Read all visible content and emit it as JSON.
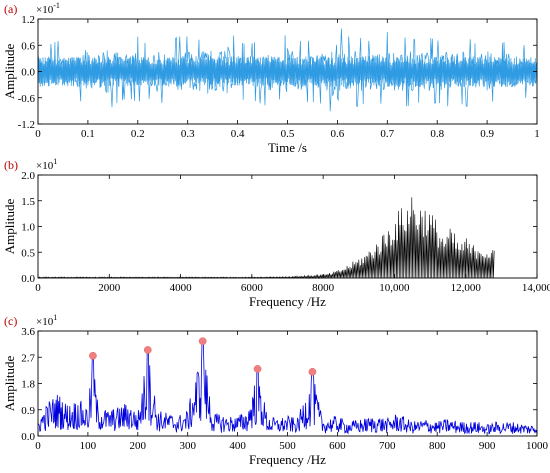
{
  "chart_data": [
    {
      "id": "a",
      "panel_label": "(a)",
      "type": "line",
      "xlabel": "Time /s",
      "ylabel": "Amplitude",
      "xlim": [
        0,
        1
      ],
      "ylim": [
        -1.2,
        1.2
      ],
      "exponent": {
        "base": "×10",
        "power": "-1"
      },
      "xticks": [
        "0",
        "0.1",
        "0.2",
        "0.3",
        "0.4",
        "0.5",
        "0.6",
        "0.7",
        "0.8",
        "0.9",
        "1"
      ],
      "yticks": [
        "-1.2",
        "-0.6",
        "0.0",
        "0.6",
        "1.2"
      ],
      "color": "#2f9be3",
      "series": [
        {
          "x": [
            0,
            0.02,
            0.04,
            0.06,
            0.08,
            0.1,
            0.12,
            0.14,
            0.16,
            0.18,
            0.2,
            0.22,
            0.24,
            0.26,
            0.28,
            0.3,
            0.32,
            0.34,
            0.36,
            0.38,
            0.4,
            0.42,
            0.44,
            0.46,
            0.48,
            0.5,
            0.52,
            0.54,
            0.56,
            0.58,
            0.6,
            0.62,
            0.64,
            0.66,
            0.68,
            0.7,
            0.72,
            0.74,
            0.76,
            0.78,
            0.8,
            0.82,
            0.84,
            0.86,
            0.88,
            0.9,
            0.92,
            0.94,
            0.96,
            0.98,
            1.0
          ],
          "min": [
            -0.5,
            -0.6,
            -0.7,
            -0.5,
            -0.6,
            -0.9,
            -0.6,
            -0.9,
            -0.7,
            -0.6,
            -0.7,
            -0.6,
            -0.8,
            -0.6,
            -0.7,
            -0.8,
            -0.7,
            -0.9,
            -0.7,
            -1.0,
            -0.7,
            -0.6,
            -0.7,
            -0.8,
            -0.6,
            -0.8,
            -0.7,
            -0.7,
            -0.7,
            -0.8,
            -1.2,
            -0.7,
            -0.8,
            -0.7,
            -0.7,
            -0.8,
            -0.7,
            -0.8,
            -0.7,
            -0.8,
            -0.7,
            -0.8,
            -0.7,
            -0.8,
            -0.6,
            -0.8,
            -0.6,
            -0.7,
            -0.6,
            -0.6,
            -0.5
          ],
          "max": [
            0.5,
            0.6,
            0.7,
            0.5,
            0.6,
            0.9,
            0.6,
            1.0,
            0.8,
            0.6,
            0.8,
            0.6,
            0.8,
            0.6,
            0.8,
            0.8,
            0.7,
            0.9,
            0.7,
            1.0,
            0.7,
            0.6,
            0.7,
            0.8,
            0.6,
            0.9,
            0.7,
            0.7,
            0.7,
            0.8,
            1.1,
            0.8,
            0.8,
            0.7,
            0.7,
            0.9,
            0.7,
            0.8,
            0.7,
            0.8,
            0.7,
            0.8,
            0.7,
            0.8,
            0.6,
            0.8,
            0.6,
            0.7,
            0.6,
            0.6,
            0.5
          ]
        }
      ]
    },
    {
      "id": "b",
      "panel_label": "(b)",
      "type": "line",
      "xlabel": "Frequency /Hz",
      "ylabel": "Amplitude",
      "xlim": [
        0,
        14000
      ],
      "ylim": [
        0,
        2.0
      ],
      "exponent": {
        "base": "×10",
        "power": "1"
      },
      "xticks": [
        "0",
        "2000",
        "4000",
        "6000",
        "8000",
        "10,000",
        "12,000",
        "14,000"
      ],
      "yticks": [
        "0.0",
        "0.5",
        "1.0",
        "1.5",
        "2.0"
      ],
      "color": "#000000",
      "series": [
        {
          "x": [
            0,
            2000,
            4000,
            6000,
            7000,
            7600,
            8000,
            8200,
            8400,
            8600,
            8800,
            9000,
            9200,
            9400,
            9600,
            9800,
            10000,
            10200,
            10400,
            10500,
            10600,
            10800,
            11000,
            11200,
            11400,
            11600,
            11800,
            12000,
            12200,
            12400,
            12600,
            12800
          ],
          "min": [
            0,
            0,
            0,
            0,
            0,
            0,
            0,
            0,
            0,
            0,
            0,
            0,
            0,
            0,
            0,
            0,
            0,
            0,
            0,
            0,
            0,
            0,
            0,
            0,
            0,
            0,
            0,
            0,
            0,
            0,
            0,
            0
          ],
          "max": [
            0.02,
            0.02,
            0.02,
            0.02,
            0.03,
            0.05,
            0.07,
            0.1,
            0.15,
            0.22,
            0.3,
            0.4,
            0.5,
            0.65,
            0.8,
            1.0,
            1.2,
            1.4,
            1.55,
            1.75,
            1.5,
            1.45,
            1.35,
            1.1,
            0.85,
            1.0,
            0.7,
            0.8,
            0.65,
            0.7,
            0.6,
            0.55
          ]
        }
      ]
    },
    {
      "id": "c",
      "panel_label": "(c)",
      "type": "line",
      "xlabel": "Frequency /Hz",
      "ylabel": "Amplitude",
      "xlim": [
        0,
        1000
      ],
      "ylim": [
        0,
        3.6
      ],
      "exponent": {
        "base": "×10",
        "power": "1"
      },
      "xticks": [
        "0",
        "100",
        "200",
        "300",
        "400",
        "500",
        "600",
        "700",
        "800",
        "900",
        "1000"
      ],
      "yticks": [
        "0.0",
        "0.9",
        "1.8",
        "2.7",
        "3.6"
      ],
      "color": "#0000dd",
      "marker_color": "#f08080",
      "peaks": [
        {
          "x": 110,
          "y": 2.75
        },
        {
          "x": 220,
          "y": 2.95
        },
        {
          "x": 330,
          "y": 3.25
        },
        {
          "x": 440,
          "y": 2.3
        },
        {
          "x": 550,
          "y": 2.2
        }
      ],
      "series": [
        {
          "x": [
            0,
            20,
            40,
            60,
            80,
            100,
            110,
            120,
            140,
            160,
            180,
            200,
            220,
            240,
            260,
            280,
            300,
            330,
            350,
            380,
            400,
            420,
            440,
            460,
            480,
            500,
            520,
            550,
            570,
            600,
            620,
            650,
            680,
            700,
            720,
            750,
            780,
            800,
            820,
            850,
            880,
            900,
            920,
            950,
            980,
            1000
          ],
          "y": [
            0.6,
            1.2,
            1.5,
            1.1,
            1.3,
            1.0,
            2.75,
            1.1,
            0.9,
            1.0,
            1.2,
            0.8,
            2.95,
            0.9,
            0.8,
            0.7,
            0.9,
            3.25,
            0.8,
            0.7,
            0.7,
            0.9,
            2.3,
            0.7,
            0.6,
            0.7,
            0.6,
            2.2,
            0.6,
            0.7,
            0.5,
            0.6,
            0.7,
            0.6,
            0.8,
            0.5,
            0.6,
            0.5,
            0.6,
            0.5,
            0.5,
            0.4,
            0.5,
            0.5,
            0.4,
            0.4
          ]
        }
      ]
    }
  ]
}
